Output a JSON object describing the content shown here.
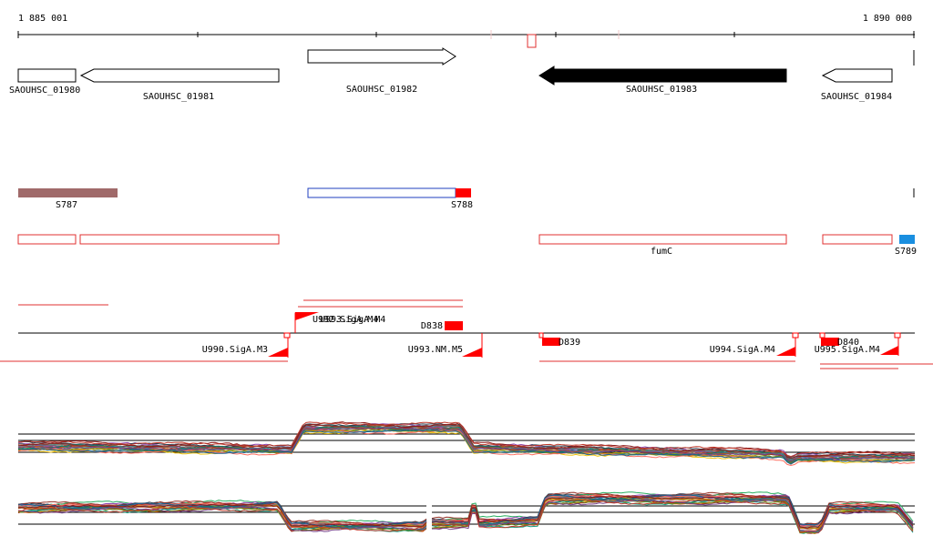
{
  "ruler": {
    "start_label": "1 885 001",
    "end_label": "1 890 000"
  },
  "genes": [
    {
      "id": "SAOUHSC_01980",
      "label": "SAOUHSC_01980",
      "strand": "-",
      "style": "open"
    },
    {
      "id": "SAOUHSC_01981",
      "label": "SAOUHSC_01981",
      "strand": "-",
      "style": "open"
    },
    {
      "id": "SAOUHSC_01982",
      "label": "SAOUHSC_01982",
      "strand": "+",
      "style": "open"
    },
    {
      "id": "SAOUHSC_01983",
      "label": "SAOUHSC_01983",
      "strand": "-",
      "style": "filled"
    },
    {
      "id": "SAOUHSC_01984",
      "label": "SAOUHSC_01984",
      "strand": "-",
      "style": "open"
    }
  ],
  "srna": [
    {
      "label": "S787",
      "color": "#a06a6a"
    },
    {
      "label": "S788",
      "color": "#ff0000",
      "outline": "#1f3fbf"
    },
    {
      "label": "S789",
      "color": "#1a8fe0"
    }
  ],
  "operon": {
    "label": "fumC",
    "color": "#e03030"
  },
  "features": [
    {
      "label": "U992.SigA.M4"
    },
    {
      "label": "U993.SigA.M4"
    },
    {
      "label": "D838"
    },
    {
      "label": "U990.SigA.M3"
    },
    {
      "label": "U993.NM.M5"
    },
    {
      "label": "D839"
    },
    {
      "label": "U994.SigA.M4"
    },
    {
      "label": "D840"
    },
    {
      "label": "U995.SigA.M4"
    }
  ],
  "colors": {
    "accent": "#ff0000",
    "gene_fill": "#000000"
  }
}
